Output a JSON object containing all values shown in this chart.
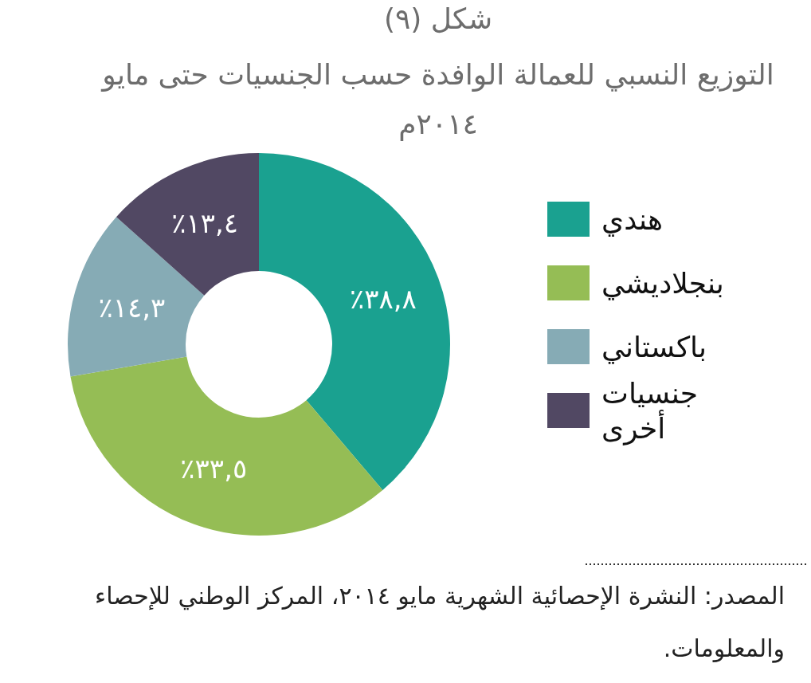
{
  "chart_data": {
    "type": "donut",
    "title": "شكل (٩)",
    "subtitle": "التوزيع النسبي للعمالة الوافدة حسب الجنسيات حتى مايو ٢٠١٤م",
    "categories": [
      "هندي",
      "بنجلاديشي",
      "باكستاني",
      "جنسيات أخرى"
    ],
    "values": [
      38.8,
      33.5,
      14.3,
      13.4
    ],
    "colors": [
      "#1aa190",
      "#95bd55",
      "#86abb5",
      "#514863"
    ],
    "value_labels": [
      "٣٨,٨٪",
      "٣٣,٥٪",
      "١٤,٣٪",
      "١٣,٤٪"
    ],
    "legend": "right",
    "annotations": [
      "المصدر: النشرة الإحصائية الشهرية مايو ٢٠١٤، المركز الوطني للإحصاء والمعلومات."
    ]
  }
}
